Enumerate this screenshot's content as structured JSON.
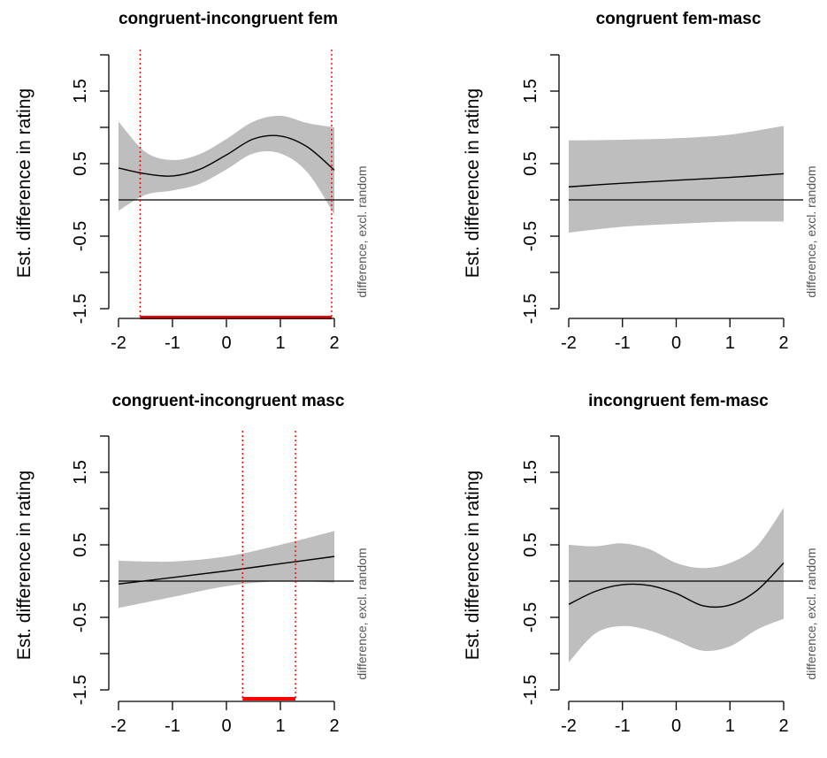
{
  "chart_data": [
    {
      "type": "line",
      "title": "congruent-incongruent fem",
      "ylabel": "Est. difference in rating",
      "side_note": "difference, excl. random",
      "xlim": [
        -2,
        2
      ],
      "ylim": [
        -1.5,
        2.0
      ],
      "xticks": [
        "-2",
        "-1",
        "0",
        "1",
        "2"
      ],
      "yticks": [
        "-1.5",
        "-0.5",
        "0.5",
        "1.5"
      ],
      "x": [
        -2.0,
        -1.5,
        -1.0,
        -0.5,
        0.0,
        0.5,
        1.0,
        1.5,
        2.0
      ],
      "estimate": [
        0.44,
        0.36,
        0.33,
        0.42,
        0.62,
        0.84,
        0.88,
        0.73,
        0.41
      ],
      "ci_lower": [
        -0.15,
        0.07,
        0.13,
        0.22,
        0.42,
        0.64,
        0.64,
        0.38,
        -0.2
      ],
      "ci_upper": [
        1.08,
        0.66,
        0.55,
        0.63,
        0.84,
        1.08,
        1.16,
        1.06,
        1.0
      ],
      "significant_region": [
        -1.6,
        1.95
      ]
    },
    {
      "type": "line",
      "title": "congruent fem-masc",
      "ylabel": "Est. difference in rating",
      "side_note": "difference, excl. random",
      "xlim": [
        -2,
        2
      ],
      "ylim": [
        -1.5,
        2.0
      ],
      "xticks": [
        "-2",
        "-1",
        "0",
        "1",
        "2"
      ],
      "yticks": [
        "-1.5",
        "-0.5",
        "0.5",
        "1.5"
      ],
      "x": [
        -2.0,
        -1.0,
        0.0,
        1.0,
        2.0
      ],
      "estimate": [
        0.18,
        0.23,
        0.27,
        0.31,
        0.36
      ],
      "ci_lower": [
        -0.45,
        -0.37,
        -0.33,
        -0.3,
        -0.3
      ],
      "ci_upper": [
        0.82,
        0.83,
        0.85,
        0.9,
        1.02
      ],
      "significant_region": null
    },
    {
      "type": "line",
      "title": "congruent-incongruent masc",
      "ylabel": "Est. difference in rating",
      "side_note": "difference, excl. random",
      "xlim": [
        -2,
        2
      ],
      "ylim": [
        -1.5,
        2.0
      ],
      "xticks": [
        "-2",
        "-1",
        "0",
        "1",
        "2"
      ],
      "yticks": [
        "-1.5",
        "-0.5",
        "0.5",
        "1.5"
      ],
      "x": [
        -2.0,
        -1.0,
        0.0,
        1.0,
        2.0
      ],
      "estimate": [
        -0.04,
        0.05,
        0.14,
        0.24,
        0.34
      ],
      "ci_lower": [
        -0.37,
        -0.22,
        -0.07,
        0.0,
        -0.02
      ],
      "ci_upper": [
        0.28,
        0.27,
        0.34,
        0.5,
        0.69
      ],
      "significant_region": [
        0.3,
        1.28
      ]
    },
    {
      "type": "line",
      "title": "incongruent fem-masc",
      "ylabel": "Est. difference in rating",
      "side_note": "difference, excl. random",
      "xlim": [
        -2,
        2
      ],
      "ylim": [
        -1.5,
        2.0
      ],
      "xticks": [
        "-2",
        "-1",
        "0",
        "1",
        "2"
      ],
      "yticks": [
        "-1.5",
        "-0.5",
        "0.5",
        "1.5"
      ],
      "x": [
        -2.0,
        -1.5,
        -1.0,
        -0.5,
        0.0,
        0.5,
        1.0,
        1.5,
        2.0
      ],
      "estimate": [
        -0.32,
        -0.14,
        -0.05,
        -0.06,
        -0.17,
        -0.34,
        -0.33,
        -0.13,
        0.25
      ],
      "ci_lower": [
        -1.12,
        -0.72,
        -0.62,
        -0.68,
        -0.82,
        -0.96,
        -0.9,
        -0.67,
        -0.52
      ],
      "ci_upper": [
        0.5,
        0.48,
        0.52,
        0.44,
        0.25,
        0.18,
        0.25,
        0.48,
        1.01
      ],
      "significant_region": null
    }
  ],
  "colors": {
    "band": "#bebebe",
    "line": "#000000",
    "significance": "#ff0000"
  }
}
